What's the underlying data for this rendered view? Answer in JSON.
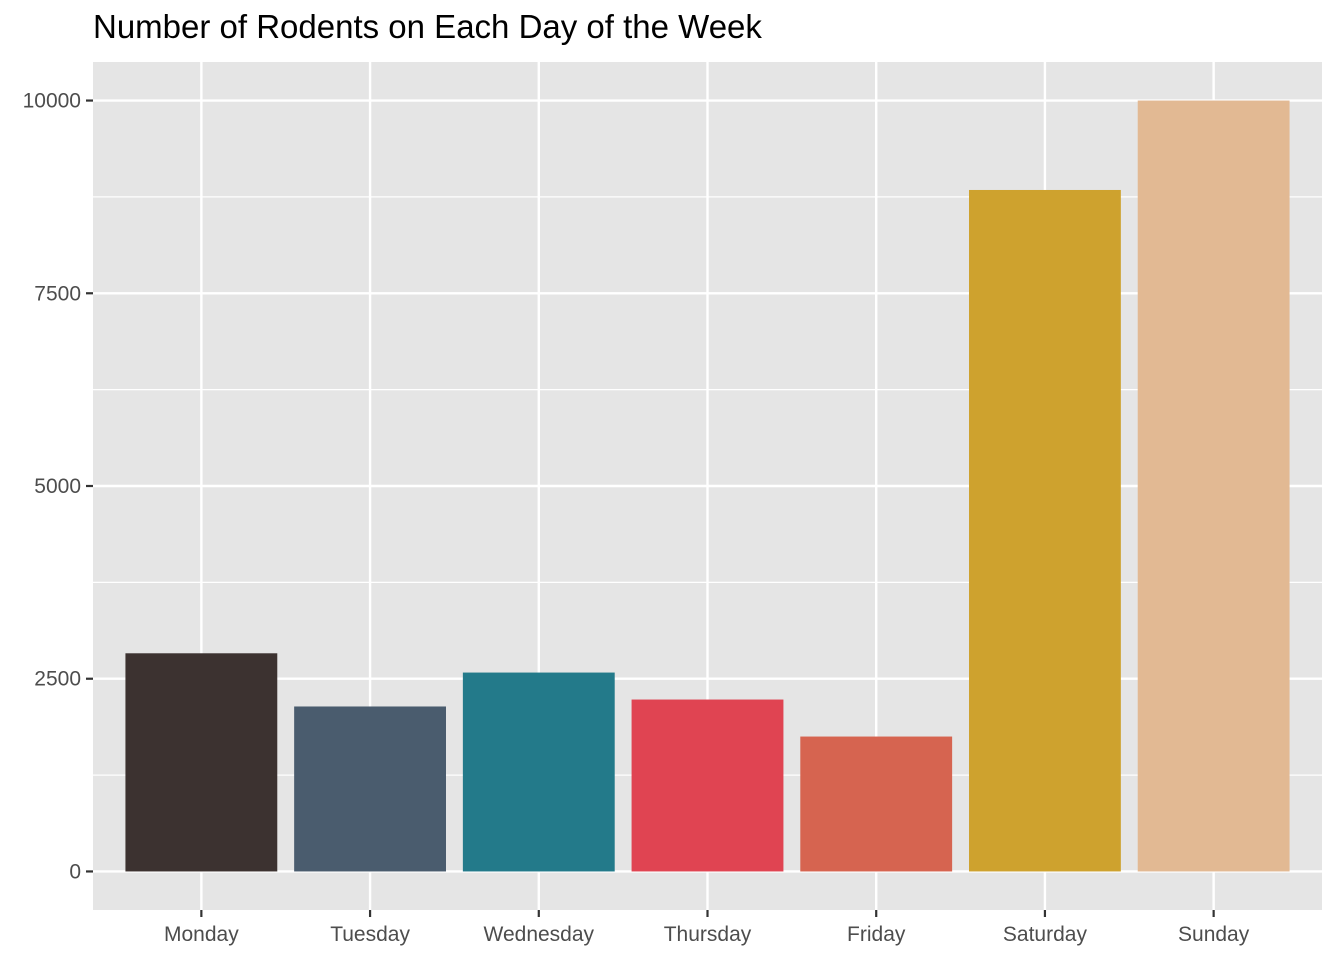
{
  "chart_data": {
    "type": "bar",
    "title": "Number of Rodents on Each Day of the Week",
    "xlabel": "",
    "ylabel": "",
    "categories": [
      "Monday",
      "Tuesday",
      "Wednesday",
      "Thursday",
      "Friday",
      "Saturday",
      "Sunday"
    ],
    "values": [
      2830,
      2140,
      2580,
      2230,
      1750,
      8840,
      10000
    ],
    "colors": [
      "#3c3230",
      "#4a5c6e",
      "#237a8a",
      "#e04452",
      "#d66450",
      "#cea22e",
      "#e2b993"
    ],
    "ylim": [
      -500,
      10500
    ],
    "yticks": [
      0,
      2500,
      5000,
      7500,
      10000
    ],
    "ytick_labels": [
      "0",
      "2500",
      "5000",
      "7500",
      "10000"
    ],
    "panel_background": "#e5e5e5",
    "grid": true,
    "legend": "none"
  }
}
